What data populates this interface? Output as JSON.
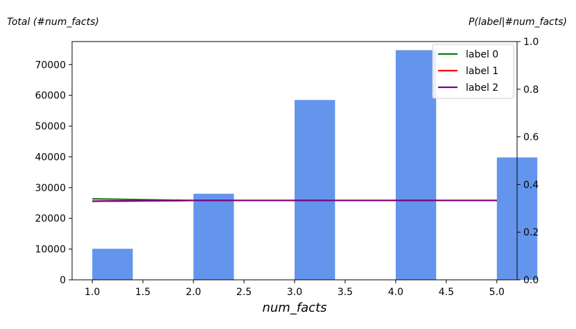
{
  "chart_data": {
    "type": "bar",
    "xlabel": "num_facts",
    "ylabel_left": "Total (#num_facts)",
    "ylabel_right": "P(label|#num_facts)",
    "xlim": [
      0.8,
      5.2
    ],
    "ylim_left": [
      0,
      77500
    ],
    "ylim_right": [
      0.0,
      1.0
    ],
    "xticks": [
      "1.0",
      "1.5",
      "2.0",
      "2.5",
      "3.0",
      "3.5",
      "4.0",
      "4.5",
      "5.0"
    ],
    "yticks_left": [
      "0",
      "10000",
      "20000",
      "30000",
      "40000",
      "50000",
      "60000",
      "70000"
    ],
    "yticks_right": [
      "0.0",
      "0.2",
      "0.4",
      "0.6",
      "0.8",
      "1.0"
    ],
    "bar_color": "#6495ED",
    "bars": {
      "x": [
        1,
        2,
        3,
        4,
        5
      ],
      "values": [
        10100,
        28000,
        58500,
        74700,
        39800
      ],
      "bin_width": 0.4
    },
    "series": [
      {
        "name": "label 0",
        "color": "#008000",
        "x": [
          1,
          2,
          3,
          4,
          5
        ],
        "values": [
          0.34,
          0.333,
          0.333,
          0.333,
          0.333
        ]
      },
      {
        "name": "label 1",
        "color": "#ff0000",
        "x": [
          1,
          2,
          3,
          4,
          5
        ],
        "values": [
          0.33,
          0.333,
          0.333,
          0.333,
          0.333
        ]
      },
      {
        "name": "label 2",
        "color": "#800080",
        "x": [
          1,
          2,
          3,
          4,
          5
        ],
        "values": [
          0.33,
          0.333,
          0.333,
          0.333,
          0.333
        ]
      }
    ],
    "legend_position": "top-right",
    "grid": false
  }
}
